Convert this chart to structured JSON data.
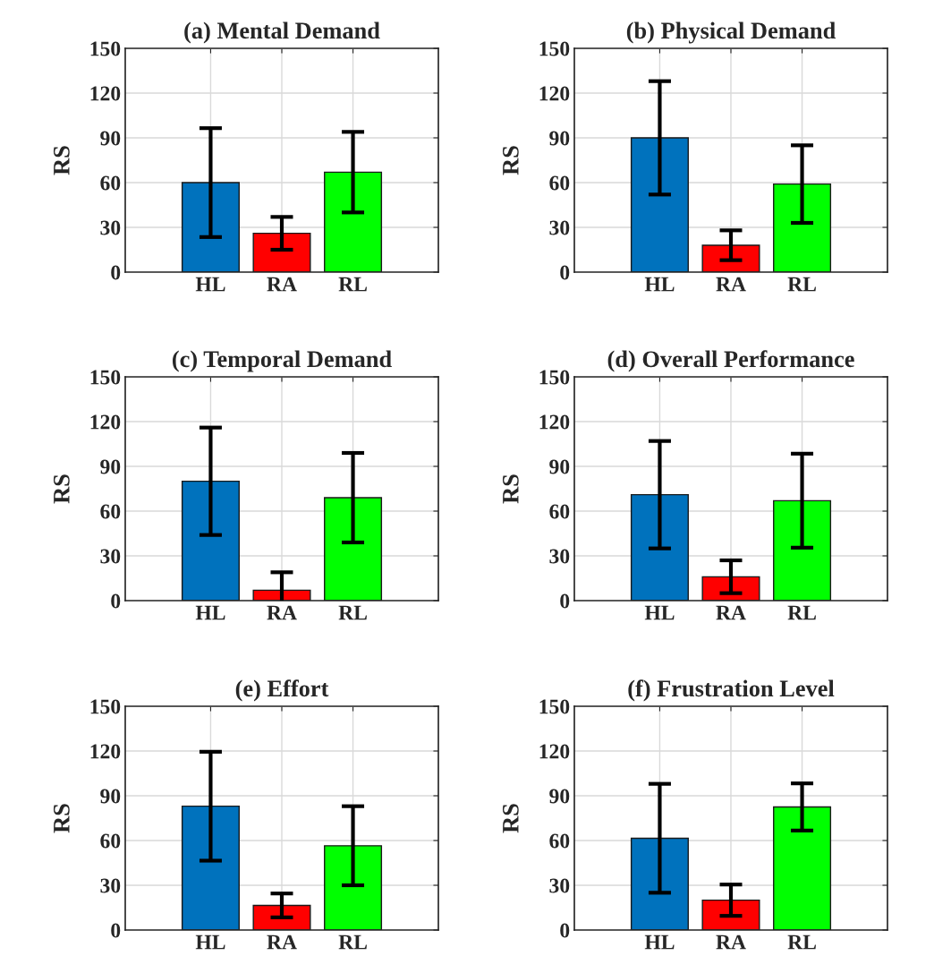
{
  "chart_data": [
    {
      "type": "bar",
      "title": "(a) Mental Demand",
      "ylabel": "RS",
      "categories": [
        "HL",
        "RA",
        "RL"
      ],
      "values": [
        60,
        26,
        67
      ],
      "errors": [
        36.5,
        11,
        27
      ],
      "colors": [
        "#0072bd",
        "#ff0000",
        "#00ff00"
      ],
      "ylim": [
        0,
        150
      ],
      "yticks": [
        0,
        30,
        60,
        90,
        120,
        150
      ],
      "grid": true
    },
    {
      "type": "bar",
      "title": "(b) Physical Demand",
      "ylabel": "RS",
      "categories": [
        "HL",
        "RA",
        "RL"
      ],
      "values": [
        90,
        18,
        59
      ],
      "errors": [
        38,
        10,
        26
      ],
      "colors": [
        "#0072bd",
        "#ff0000",
        "#00ff00"
      ],
      "ylim": [
        0,
        150
      ],
      "yticks": [
        0,
        30,
        60,
        90,
        120,
        150
      ],
      "grid": true
    },
    {
      "type": "bar",
      "title": "(c) Temporal Demand",
      "ylabel": "RS",
      "categories": [
        "HL",
        "RA",
        "RL"
      ],
      "values": [
        80,
        7,
        69
      ],
      "errors": [
        36,
        12,
        30
      ],
      "colors": [
        "#0072bd",
        "#ff0000",
        "#00ff00"
      ],
      "ylim": [
        0,
        150
      ],
      "yticks": [
        0,
        30,
        60,
        90,
        120,
        150
      ],
      "grid": true
    },
    {
      "type": "bar",
      "title": "(d) Overall Performance",
      "ylabel": "RS",
      "categories": [
        "HL",
        "RA",
        "RL"
      ],
      "values": [
        71,
        16,
        67
      ],
      "errors": [
        36,
        11,
        31.5
      ],
      "colors": [
        "#0072bd",
        "#ff0000",
        "#00ff00"
      ],
      "ylim": [
        0,
        150
      ],
      "yticks": [
        0,
        30,
        60,
        90,
        120,
        150
      ],
      "grid": true
    },
    {
      "type": "bar",
      "title": "(e) Effort",
      "ylabel": "RS",
      "categories": [
        "HL",
        "RA",
        "RL"
      ],
      "values": [
        83,
        16.5,
        56.5
      ],
      "errors": [
        36.5,
        8,
        26.5
      ],
      "colors": [
        "#0072bd",
        "#ff0000",
        "#00ff00"
      ],
      "ylim": [
        0,
        150
      ],
      "yticks": [
        0,
        30,
        60,
        90,
        120,
        150
      ],
      "grid": true
    },
    {
      "type": "bar",
      "title": "(f) Frustration Level",
      "ylabel": "RS",
      "categories": [
        "HL",
        "RA",
        "RL"
      ],
      "values": [
        61.5,
        20,
        82.5
      ],
      "errors": [
        36.5,
        10.5,
        15.8
      ],
      "colors": [
        "#0072bd",
        "#ff0000",
        "#00ff00"
      ],
      "ylim": [
        0,
        150
      ],
      "yticks": [
        0,
        30,
        60,
        90,
        120,
        150
      ],
      "grid": true
    }
  ]
}
